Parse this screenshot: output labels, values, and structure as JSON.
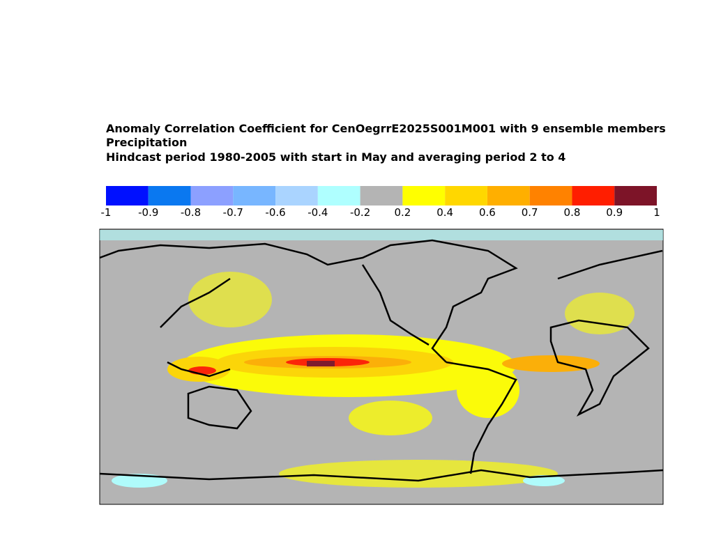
{
  "header": {
    "title": [
      "Anomaly Correlation Coefficient for CenOegrrE2025S001M001 with  9 ensemble members",
      "Precipitation",
      "Hindcast period 1980-2005 with start in May and averaging period 2 to 4"
    ]
  },
  "colorbar": {
    "boundaries": [
      -1,
      -0.9,
      -0.8,
      -0.7,
      -0.6,
      -0.4,
      -0.2,
      0.2,
      0.4,
      0.6,
      0.7,
      0.8,
      0.9,
      1
    ],
    "colors": [
      "#0010ff",
      "#0a78f0",
      "#8ca0ff",
      "#78b6ff",
      "#aad4ff",
      "#afffff",
      "#b4b4b4",
      "#ffff00",
      "#ffd700",
      "#ffaf00",
      "#ff8200",
      "#ff1e00",
      "#7d1428"
    ]
  }
}
